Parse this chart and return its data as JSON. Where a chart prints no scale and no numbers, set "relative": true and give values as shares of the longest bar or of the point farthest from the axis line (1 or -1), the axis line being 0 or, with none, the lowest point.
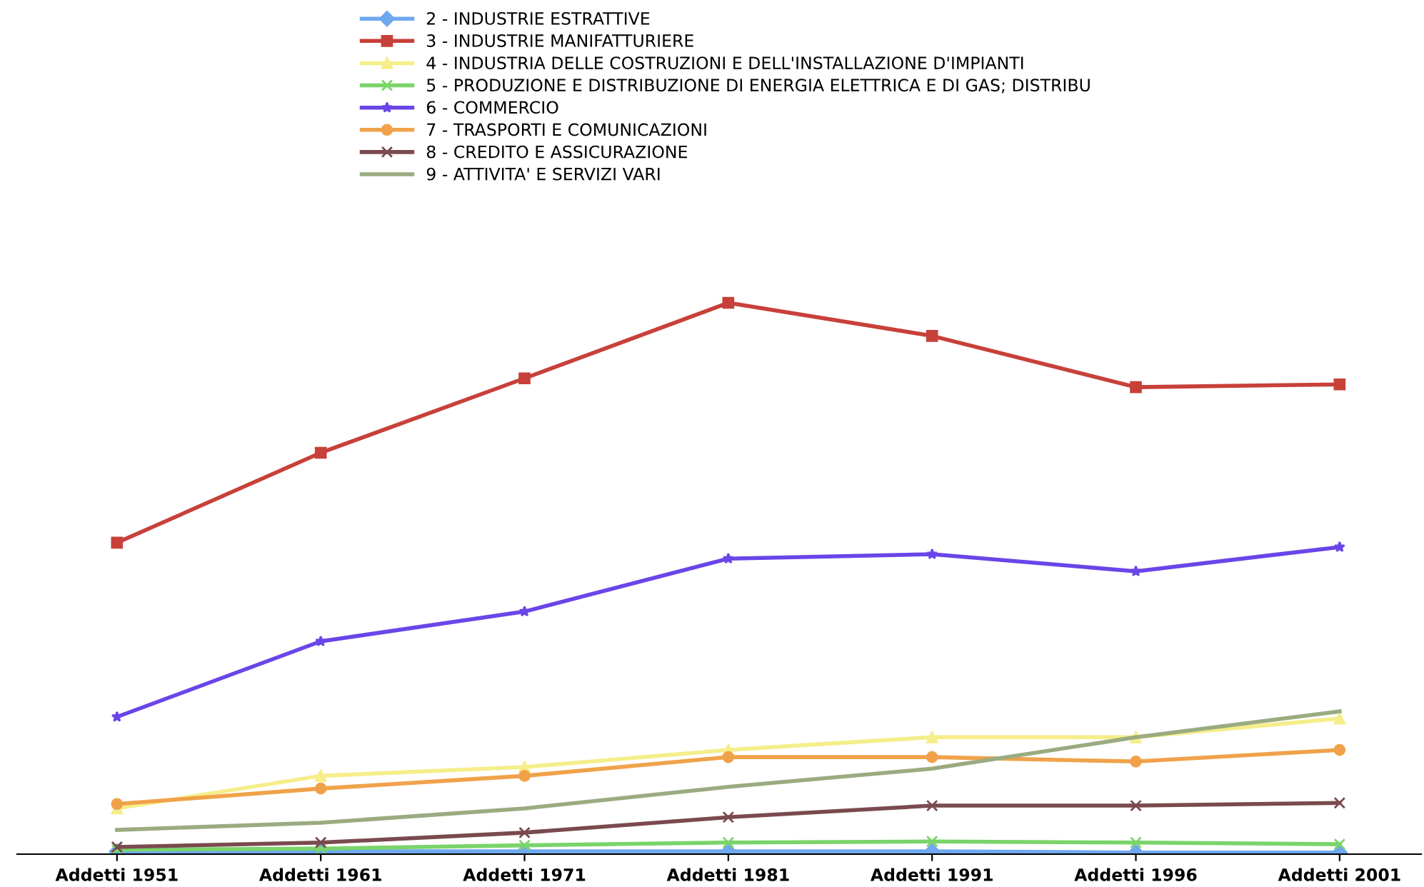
{
  "chart_data": {
    "type": "line",
    "relative": true,
    "legend": "top",
    "grid": false,
    "categories": [
      "Addetti 1951",
      "Addetti 1961",
      "Addetti 1971",
      "Addetti 1981",
      "Addetti 1991",
      "Addetti 1996",
      "Addetti 2001"
    ],
    "series": [
      {
        "name": "2 - INDUSTRIE ESTRATTIVE",
        "color": "#6fa8ef",
        "marker": "diamond",
        "values": [
          0.005,
          0.005,
          0.005,
          0.005,
          0.005,
          0.003,
          0.003
        ]
      },
      {
        "name": "3 - INDUSTRIE MANIFATTURIERE",
        "color": "#c8403a",
        "marker": "square",
        "values": [
          0.565,
          0.728,
          0.863,
          1,
          0.94,
          0.847,
          0.852
        ]
      },
      {
        "name": "4 - INDUSTRIA DELLE COSTRUZIONI E DELL'INSTALLAZIONE D'IMPIANTI",
        "color": "#f5ee8a",
        "marker": "triangle",
        "values": [
          0.083,
          0.142,
          0.158,
          0.189,
          0.212,
          0.212,
          0.246
        ]
      },
      {
        "name": "5 - PRODUZIONE E DISTRIBUZIONE DI ENERGIA ELETTRICA E DI GAS; DISTRIBU",
        "color": "#7ad46a",
        "marker": "cross",
        "values": [
          0.008,
          0.01,
          0.016,
          0.021,
          0.023,
          0.021,
          0.018
        ]
      },
      {
        "name": "6 - COMMERCIO",
        "color": "#6a45e8",
        "marker": "star",
        "values": [
          0.249,
          0.386,
          0.44,
          0.536,
          0.544,
          0.513,
          0.557
        ]
      },
      {
        "name": "7 - TRASPORTI E COMUNICAZIONI",
        "color": "#f0a24a",
        "marker": "circle",
        "values": [
          0.091,
          0.119,
          0.142,
          0.176,
          0.176,
          0.168,
          0.189
        ]
      },
      {
        "name": "8 - CREDITO E ASSICURAZIONE",
        "color": "#7a4a4e",
        "marker": "cross",
        "values": [
          0.013,
          0.021,
          0.039,
          0.067,
          0.088,
          0.088,
          0.093
        ]
      },
      {
        "name": "9 - ATTIVITA' E SERVIZI VARI",
        "color": "#9aab80",
        "marker": "none",
        "values": [
          0.044,
          0.057,
          0.083,
          0.122,
          0.155,
          0.212,
          0.259
        ]
      }
    ]
  }
}
